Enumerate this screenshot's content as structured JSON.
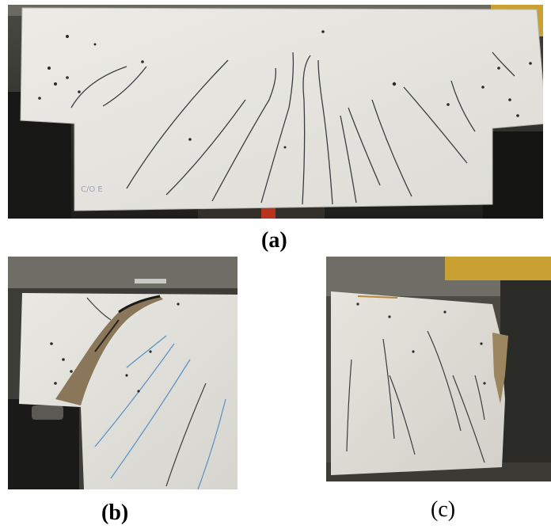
{
  "figure": {
    "panels": [
      {
        "label": "(a)",
        "subject": "concrete-beam-flexural-cracks"
      },
      {
        "label": "(b)",
        "subject": "concrete-beam-shear-failure"
      },
      {
        "label": "(c)",
        "subject": "concrete-beam-crushing-end"
      }
    ]
  }
}
